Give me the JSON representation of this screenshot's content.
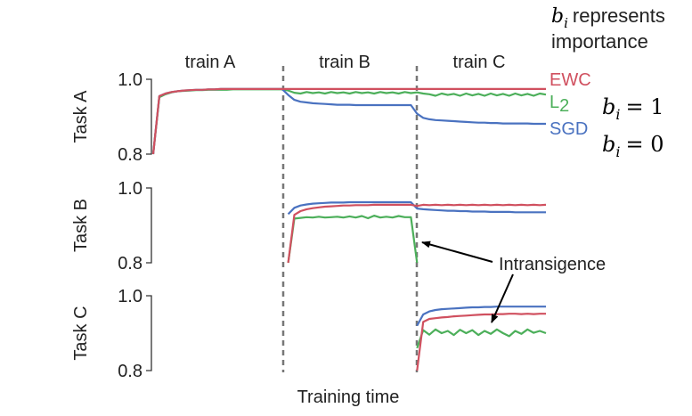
{
  "chart_data": {
    "type": "line",
    "xlabel": "Training time",
    "phases": [
      "train A",
      "train B",
      "train C"
    ],
    "yticks": [
      "1.0",
      "0.8"
    ],
    "ylim": [
      0.8,
      1.0
    ],
    "grid": false,
    "legend_placement": "right of top panel",
    "panels": [
      {
        "ylabel": "Task A",
        "series": [
          {
            "name": "EWC",
            "color": "#d0505f",
            "values": [
              0.8,
              0.955,
              0.962,
              0.966,
              0.968,
              0.97,
              0.971,
              0.972,
              0.972,
              0.973,
              0.973,
              0.974,
              0.974,
              0.974,
              0.974,
              0.974,
              0.974,
              0.974,
              0.974,
              0.974,
              0.974,
              0.974,
              0.974,
              0.974,
              0.974,
              0.974,
              0.974,
              0.974,
              0.974,
              0.974,
              0.974,
              0.974,
              0.974,
              0.974,
              0.974,
              0.974,
              0.974,
              0.974,
              0.974,
              0.974,
              0.974,
              0.974,
              0.974,
              0.974,
              0.974,
              0.974,
              0.974,
              0.974,
              0.974,
              0.974,
              0.974,
              0.974,
              0.974,
              0.974,
              0.974,
              0.974,
              0.974,
              0.974,
              0.974,
              0.974,
              0.974,
              0.974,
              0.974,
              0.974,
              0.974
            ]
          },
          {
            "name": "L2",
            "color": "#4caf5a",
            "values": [
              0.8,
              0.952,
              0.96,
              0.965,
              0.968,
              0.969,
              0.97,
              0.971,
              0.971,
              0.972,
              0.972,
              0.972,
              0.972,
              0.973,
              0.973,
              0.973,
              0.973,
              0.973,
              0.973,
              0.973,
              0.973,
              0.973,
              0.97,
              0.964,
              0.962,
              0.966,
              0.963,
              0.965,
              0.962,
              0.966,
              0.963,
              0.965,
              0.962,
              0.966,
              0.963,
              0.965,
              0.962,
              0.966,
              0.963,
              0.965,
              0.962,
              0.966,
              0.963,
              0.965,
              0.962,
              0.96,
              0.956,
              0.962,
              0.958,
              0.961,
              0.956,
              0.962,
              0.957,
              0.961,
              0.956,
              0.962,
              0.957,
              0.961,
              0.956,
              0.962,
              0.957,
              0.961,
              0.956,
              0.962,
              0.959
            ]
          },
          {
            "name": "SGD",
            "color": "#4a72c0",
            "values": [
              0.8,
              0.955,
              0.962,
              0.966,
              0.968,
              0.97,
              0.971,
              0.972,
              0.972,
              0.973,
              0.973,
              0.974,
              0.974,
              0.974,
              0.974,
              0.974,
              0.974,
              0.974,
              0.974,
              0.974,
              0.974,
              0.974,
              0.958,
              0.945,
              0.94,
              0.938,
              0.936,
              0.935,
              0.934,
              0.933,
              0.932,
              0.932,
              0.932,
              0.931,
              0.931,
              0.931,
              0.931,
              0.931,
              0.931,
              0.931,
              0.931,
              0.931,
              0.931,
              0.908,
              0.897,
              0.893,
              0.891,
              0.89,
              0.889,
              0.888,
              0.887,
              0.886,
              0.885,
              0.884,
              0.884,
              0.883,
              0.883,
              0.882,
              0.882,
              0.882,
              0.882,
              0.882,
              0.881,
              0.881,
              0.881
            ]
          }
        ]
      },
      {
        "ylabel": "Task B",
        "series": [
          {
            "name": "EWC",
            "color": "#d0505f",
            "values": [
              null,
              null,
              null,
              null,
              null,
              null,
              null,
              null,
              null,
              null,
              null,
              null,
              null,
              null,
              null,
              null,
              null,
              null,
              null,
              null,
              null,
              null,
              0.8,
              0.928,
              0.938,
              0.943,
              0.946,
              0.948,
              0.95,
              0.951,
              0.952,
              0.953,
              0.953,
              0.954,
              0.954,
              0.954,
              0.955,
              0.955,
              0.955,
              0.955,
              0.955,
              0.955,
              0.955,
              0.952,
              0.955,
              0.954,
              0.955,
              0.954,
              0.955,
              0.954,
              0.955,
              0.954,
              0.955,
              0.954,
              0.955,
              0.954,
              0.955,
              0.954,
              0.955,
              0.954,
              0.955,
              0.954,
              0.955,
              0.954,
              0.955
            ]
          },
          {
            "name": "L2",
            "color": "#4caf5a",
            "values": [
              null,
              null,
              null,
              null,
              null,
              null,
              null,
              null,
              null,
              null,
              null,
              null,
              null,
              null,
              null,
              null,
              null,
              null,
              null,
              null,
              null,
              null,
              0.8,
              0.918,
              0.92,
              0.922,
              0.921,
              0.923,
              0.921,
              0.922,
              0.923,
              0.921,
              0.924,
              0.921,
              0.925,
              0.919,
              0.926,
              0.921,
              0.923,
              0.921,
              0.925,
              0.922,
              0.922,
              0.8
            ]
          },
          {
            "name": "SGD",
            "color": "#4a72c0",
            "values": [
              null,
              null,
              null,
              null,
              null,
              null,
              null,
              null,
              null,
              null,
              null,
              null,
              null,
              null,
              null,
              null,
              null,
              null,
              null,
              null,
              null,
              null,
              0.93,
              0.947,
              0.953,
              0.956,
              0.958,
              0.959,
              0.96,
              0.961,
              0.961,
              0.961,
              0.962,
              0.962,
              0.962,
              0.962,
              0.962,
              0.962,
              0.962,
              0.962,
              0.962,
              0.962,
              0.962,
              0.945,
              0.943,
              0.942,
              0.941,
              0.94,
              0.939,
              0.939,
              0.938,
              0.938,
              0.937,
              0.937,
              0.937,
              0.936,
              0.936,
              0.936,
              0.936,
              0.935,
              0.935,
              0.935,
              0.935,
              0.935,
              0.935
            ]
          }
        ]
      },
      {
        "ylabel": "Task C",
        "series": [
          {
            "name": "EWC",
            "color": "#d0505f",
            "values": [
              null,
              null,
              null,
              null,
              null,
              null,
              null,
              null,
              null,
              null,
              null,
              null,
              null,
              null,
              null,
              null,
              null,
              null,
              null,
              null,
              null,
              null,
              null,
              null,
              null,
              null,
              null,
              null,
              null,
              null,
              null,
              null,
              null,
              null,
              null,
              null,
              null,
              null,
              null,
              null,
              null,
              null,
              null,
              0.8,
              0.93,
              0.938,
              0.94,
              0.942,
              0.943,
              0.945,
              0.946,
              0.947,
              0.948,
              0.949,
              0.95,
              0.95,
              0.951,
              0.951,
              0.952,
              0.952,
              0.951,
              0.952,
              0.951,
              0.952,
              0.952
            ]
          },
          {
            "name": "L2",
            "color": "#4caf5a",
            "values": [
              null,
              null,
              null,
              null,
              null,
              null,
              null,
              null,
              null,
              null,
              null,
              null,
              null,
              null,
              null,
              null,
              null,
              null,
              null,
              null,
              null,
              null,
              null,
              null,
              null,
              null,
              null,
              null,
              null,
              null,
              null,
              null,
              null,
              null,
              null,
              null,
              null,
              null,
              null,
              null,
              null,
              null,
              null,
              0.86,
              0.908,
              0.896,
              0.91,
              0.9,
              0.906,
              0.895,
              0.909,
              0.9,
              0.908,
              0.895,
              0.906,
              0.898,
              0.91,
              0.9,
              0.892,
              0.906,
              0.898,
              0.91,
              0.901,
              0.906,
              0.9
            ]
          },
          {
            "name": "SGD",
            "color": "#4a72c0",
            "values": [
              null,
              null,
              null,
              null,
              null,
              null,
              null,
              null,
              null,
              null,
              null,
              null,
              null,
              null,
              null,
              null,
              null,
              null,
              null,
              null,
              null,
              null,
              null,
              null,
              null,
              null,
              null,
              null,
              null,
              null,
              null,
              null,
              null,
              null,
              null,
              null,
              null,
              null,
              null,
              null,
              null,
              null,
              null,
              0.92,
              0.95,
              0.958,
              0.962,
              0.964,
              0.965,
              0.966,
              0.967,
              0.968,
              0.969,
              0.969,
              0.97,
              0.97,
              0.971,
              0.971,
              0.971,
              0.971,
              0.971,
              0.971,
              0.971,
              0.971,
              0.971
            ]
          }
        ]
      }
    ],
    "annotations": {
      "intransigence": "Intransigence",
      "b_header_var": "b",
      "b_header_sub": "i",
      "b_header_line1": "represents",
      "b_header_line2": "importance",
      "eq_ewc": "= 1",
      "eq_sgd": "= 0"
    }
  }
}
